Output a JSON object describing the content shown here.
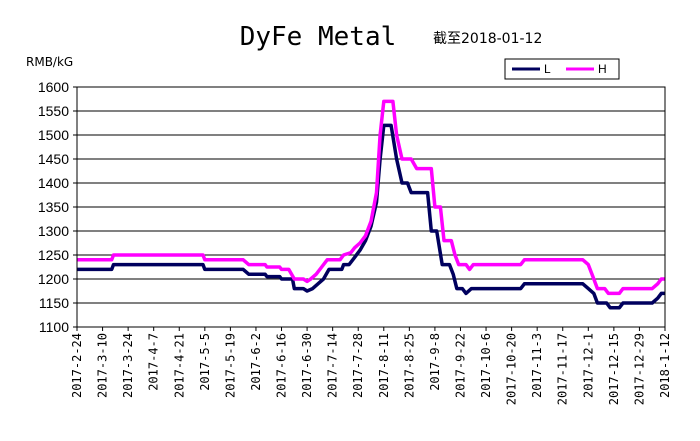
{
  "colors": {
    "background": "#ffffff",
    "plot_border": "#000000",
    "grid": "#000000",
    "series_L": "#00005e",
    "series_H": "#ff00ff"
  },
  "chart_data": {
    "type": "line",
    "title": "DyFe Metal",
    "subtitle": "截至2018-01-12",
    "ylabel": "RMB/kG",
    "xlabel": "",
    "ylim": [
      1100,
      1600
    ],
    "yticks": [
      1100,
      1150,
      1200,
      1250,
      1300,
      1350,
      1400,
      1450,
      1500,
      1550,
      1600
    ],
    "grid": "horizontal",
    "legend_position": "top-right",
    "xtick_labels": [
      "2017-2-24",
      "2017-3-10",
      "2017-3-24",
      "2017-4-7",
      "2017-4-21",
      "2017-5-5",
      "2017-5-19",
      "2017-6-2",
      "2017-6-16",
      "2017-6-30",
      "2017-7-14",
      "2017-7-28",
      "2017-8-11",
      "2017-8-25",
      "2017-9-8",
      "2017-9-22",
      "2017-10-6",
      "2017-10-20",
      "2017-11-3",
      "2017-11-17",
      "2017-12-1",
      "2017-12-15",
      "2017-12-29",
      "2018-1-12"
    ],
    "series": [
      {
        "name": "L",
        "color": "#00005e",
        "points": [
          [
            "2017-2-24",
            1220
          ],
          [
            "2017-3-15",
            1220
          ],
          [
            "2017-3-16",
            1230
          ],
          [
            "2017-5-4",
            1230
          ],
          [
            "2017-5-5",
            1220
          ],
          [
            "2017-5-26",
            1220
          ],
          [
            "2017-5-29",
            1210
          ],
          [
            "2017-6-7",
            1210
          ],
          [
            "2017-6-8",
            1205
          ],
          [
            "2017-6-15",
            1205
          ],
          [
            "2017-6-16",
            1200
          ],
          [
            "2017-6-22",
            1200
          ],
          [
            "2017-6-23",
            1180
          ],
          [
            "2017-6-28",
            1180
          ],
          [
            "2017-6-30",
            1175
          ],
          [
            "2017-7-3",
            1180
          ],
          [
            "2017-7-6",
            1190
          ],
          [
            "2017-7-9",
            1200
          ],
          [
            "2017-7-12",
            1220
          ],
          [
            "2017-7-19",
            1220
          ],
          [
            "2017-7-20",
            1230
          ],
          [
            "2017-7-23",
            1230
          ],
          [
            "2017-7-26",
            1245
          ],
          [
            "2017-7-29",
            1260
          ],
          [
            "2017-8-1",
            1280
          ],
          [
            "2017-8-4",
            1310
          ],
          [
            "2017-8-7",
            1360
          ],
          [
            "2017-8-9",
            1450
          ],
          [
            "2017-8-11",
            1520
          ],
          [
            "2017-8-15",
            1520
          ],
          [
            "2017-8-18",
            1450
          ],
          [
            "2017-8-21",
            1400
          ],
          [
            "2017-8-24",
            1400
          ],
          [
            "2017-8-26",
            1380
          ],
          [
            "2017-9-4",
            1380
          ],
          [
            "2017-9-6",
            1300
          ],
          [
            "2017-9-9",
            1300
          ],
          [
            "2017-9-12",
            1230
          ],
          [
            "2017-9-16",
            1230
          ],
          [
            "2017-9-18",
            1210
          ],
          [
            "2017-9-20",
            1180
          ],
          [
            "2017-9-23",
            1180
          ],
          [
            "2017-9-25",
            1170
          ],
          [
            "2017-9-28",
            1180
          ],
          [
            "2017-10-25",
            1180
          ],
          [
            "2017-10-27",
            1190
          ],
          [
            "2017-11-28",
            1190
          ],
          [
            "2017-12-1",
            1180
          ],
          [
            "2017-12-4",
            1170
          ],
          [
            "2017-12-6",
            1150
          ],
          [
            "2017-12-11",
            1150
          ],
          [
            "2017-12-13",
            1140
          ],
          [
            "2017-12-18",
            1140
          ],
          [
            "2017-12-20",
            1150
          ],
          [
            "2018-1-5",
            1150
          ],
          [
            "2018-1-8",
            1160
          ],
          [
            "2018-1-10",
            1170
          ],
          [
            "2018-1-12",
            1170
          ]
        ]
      },
      {
        "name": "H",
        "color": "#ff00ff",
        "points": [
          [
            "2017-2-24",
            1240
          ],
          [
            "2017-3-15",
            1240
          ],
          [
            "2017-3-16",
            1250
          ],
          [
            "2017-5-4",
            1250
          ],
          [
            "2017-5-5",
            1240
          ],
          [
            "2017-5-26",
            1240
          ],
          [
            "2017-5-29",
            1230
          ],
          [
            "2017-6-7",
            1230
          ],
          [
            "2017-6-8",
            1225
          ],
          [
            "2017-6-15",
            1225
          ],
          [
            "2017-6-16",
            1220
          ],
          [
            "2017-6-20",
            1220
          ],
          [
            "2017-6-23",
            1200
          ],
          [
            "2017-6-28",
            1200
          ],
          [
            "2017-6-30",
            1195
          ],
          [
            "2017-7-2",
            1200
          ],
          [
            "2017-7-5",
            1210
          ],
          [
            "2017-7-8",
            1225
          ],
          [
            "2017-7-11",
            1240
          ],
          [
            "2017-7-18",
            1240
          ],
          [
            "2017-7-20",
            1250
          ],
          [
            "2017-7-24",
            1255
          ],
          [
            "2017-7-26",
            1265
          ],
          [
            "2017-7-29",
            1275
          ],
          [
            "2017-8-1",
            1290
          ],
          [
            "2017-8-4",
            1320
          ],
          [
            "2017-8-7",
            1380
          ],
          [
            "2017-8-9",
            1500
          ],
          [
            "2017-8-11",
            1570
          ],
          [
            "2017-8-16",
            1570
          ],
          [
            "2017-8-18",
            1500
          ],
          [
            "2017-8-21",
            1450
          ],
          [
            "2017-8-26",
            1450
          ],
          [
            "2017-8-29",
            1430
          ],
          [
            "2017-9-6",
            1430
          ],
          [
            "2017-9-8",
            1350
          ],
          [
            "2017-9-11",
            1350
          ],
          [
            "2017-9-13",
            1280
          ],
          [
            "2017-9-17",
            1280
          ],
          [
            "2017-9-19",
            1250
          ],
          [
            "2017-9-21",
            1230
          ],
          [
            "2017-9-25",
            1230
          ],
          [
            "2017-9-27",
            1220
          ],
          [
            "2017-9-29",
            1230
          ],
          [
            "2017-10-25",
            1230
          ],
          [
            "2017-10-27",
            1240
          ],
          [
            "2017-11-28",
            1240
          ],
          [
            "2017-12-1",
            1230
          ],
          [
            "2017-12-4",
            1200
          ],
          [
            "2017-12-6",
            1180
          ],
          [
            "2017-12-10",
            1180
          ],
          [
            "2017-12-12",
            1170
          ],
          [
            "2017-12-18",
            1170
          ],
          [
            "2017-12-20",
            1180
          ],
          [
            "2018-1-5",
            1180
          ],
          [
            "2018-1-8",
            1190
          ],
          [
            "2018-1-10",
            1200
          ],
          [
            "2018-1-12",
            1200
          ]
        ]
      }
    ]
  }
}
